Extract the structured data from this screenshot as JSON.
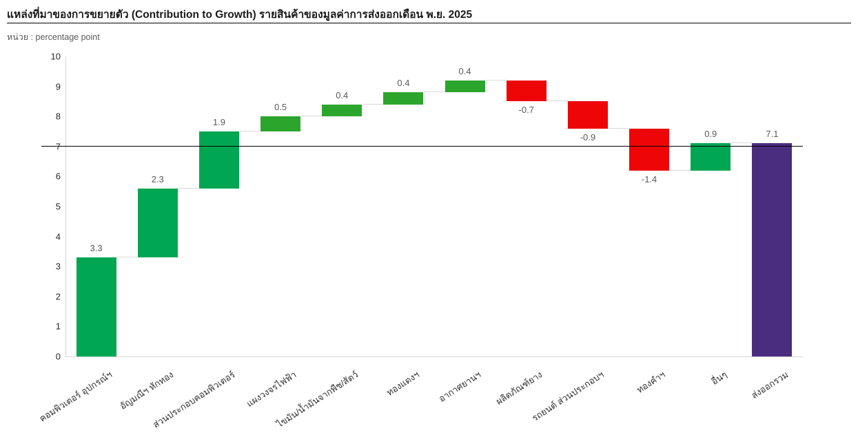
{
  "header": {
    "title": "แหล่งที่มาของการขยายตัว (Contribution to Growth) รายสินค้าของมูลค่าการส่งออกเดือน พ.ย. 2025",
    "unit_label": "หน่วย : percentage point"
  },
  "chart_data": {
    "type": "bar",
    "subtype": "waterfall",
    "title": "แหล่งที่มาของการขยายตัว (Contribution to Growth) รายสินค้าของมูลค่าการส่งออกเดือน พ.ย. 2025",
    "unit": "percentage point",
    "categories": [
      "คอมพิวเตอร์ อุปกรณ์ฯ",
      "อัญมณีฯ หักทอง",
      "ส่วนประกอบคอมพิวเตอร์",
      "แผงวงจรไฟฟ้า",
      "ไขมัน/น้ำมันจากพืช/สัตว์",
      "ทองแดงฯ",
      "อากาศยานฯ",
      "ผลิตภัณฑ์ยาง",
      "รถยนต์ ส่วนประกอบฯ",
      "ทองคำฯ",
      "อื่นๆ",
      "ส่งออกรวม"
    ],
    "values": [
      3.3,
      2.3,
      1.9,
      0.5,
      0.4,
      0.4,
      0.4,
      -0.7,
      -0.9,
      -1.4,
      0.9,
      7.1
    ],
    "value_labels": [
      "3.3",
      "2.3",
      "1.9",
      "0.5",
      "0.4",
      "0.4",
      "0.4",
      "-0.7",
      "-0.9",
      "-1.4",
      "0.9",
      "7.1"
    ],
    "cumulative_start": [
      0,
      3.3,
      5.6,
      7.5,
      8.0,
      8.4,
      8.8,
      9.2,
      8.5,
      7.6,
      6.2,
      0
    ],
    "cumulative_end": [
      3.3,
      5.6,
      7.5,
      8.0,
      8.4,
      8.8,
      9.2,
      8.5,
      7.6,
      6.2,
      7.1,
      7.1
    ],
    "is_total": [
      false,
      false,
      false,
      false,
      false,
      false,
      false,
      false,
      false,
      false,
      false,
      true
    ],
    "ylim": [
      0,
      10
    ],
    "yticks": [
      0,
      1,
      2,
      3,
      4,
      5,
      6,
      7,
      8,
      9,
      10
    ],
    "reference_line_y": 7,
    "grid": false,
    "legend": "none",
    "colors": {
      "emerald": "#00a651",
      "leaf": "#2ca52c",
      "red": "#ee0505",
      "purple": "#4a2d7f",
      "connector": "#d9d9d9",
      "axis": "#d4d4d4",
      "value_label": "#595959",
      "tick_label": "#262626"
    },
    "bar_colors": [
      "emerald",
      "emerald",
      "emerald",
      "leaf",
      "leaf",
      "leaf",
      "leaf",
      "red",
      "red",
      "red",
      "emerald",
      "purple"
    ]
  }
}
